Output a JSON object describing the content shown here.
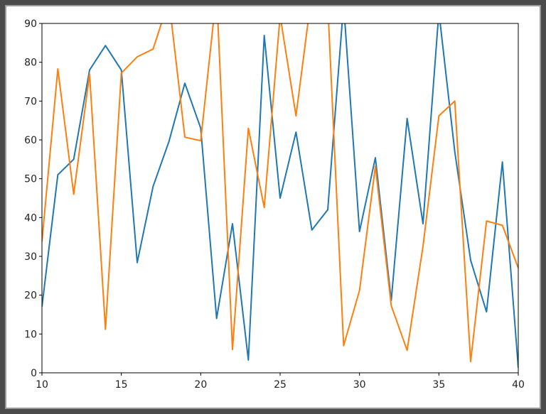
{
  "chart_data": {
    "type": "line",
    "x": [
      10,
      11,
      12,
      13,
      14,
      15,
      16,
      17,
      18,
      19,
      20,
      21,
      22,
      23,
      24,
      25,
      26,
      27,
      28,
      29,
      30,
      31,
      32,
      33,
      34,
      35,
      36,
      37,
      38,
      39,
      40
    ],
    "series": [
      {
        "color": "#1f77b4",
        "values": [
          17,
          51,
          55,
          78,
          84.3,
          78,
          28.4,
          48,
          59.6,
          74.6,
          63,
          14,
          38.4,
          3.3,
          86.9,
          45,
          62,
          36.8,
          42,
          95,
          36.4,
          55.4,
          18.6,
          65.5,
          38.4,
          93,
          57,
          29,
          15.7,
          54.3,
          1.3
        ]
      },
      {
        "color": "#ff7f0e",
        "values": [
          33.8,
          78.3,
          46,
          77,
          11.2,
          77.2,
          81.4,
          83.4,
          96,
          60.7,
          59.8,
          98,
          6,
          63,
          42.6,
          92,
          66.2,
          98,
          95,
          7,
          21.2,
          53.2,
          17.3,
          5.8,
          32.6,
          66.2,
          70,
          2.9,
          39.1,
          38,
          27
        ]
      }
    ],
    "xlim": [
      10,
      40
    ],
    "ylim": [
      0,
      90
    ],
    "xticks": [
      10,
      15,
      20,
      25,
      30,
      35,
      40
    ],
    "yticks": [
      0,
      10,
      20,
      30,
      40,
      50,
      60,
      70,
      80,
      90
    ]
  }
}
